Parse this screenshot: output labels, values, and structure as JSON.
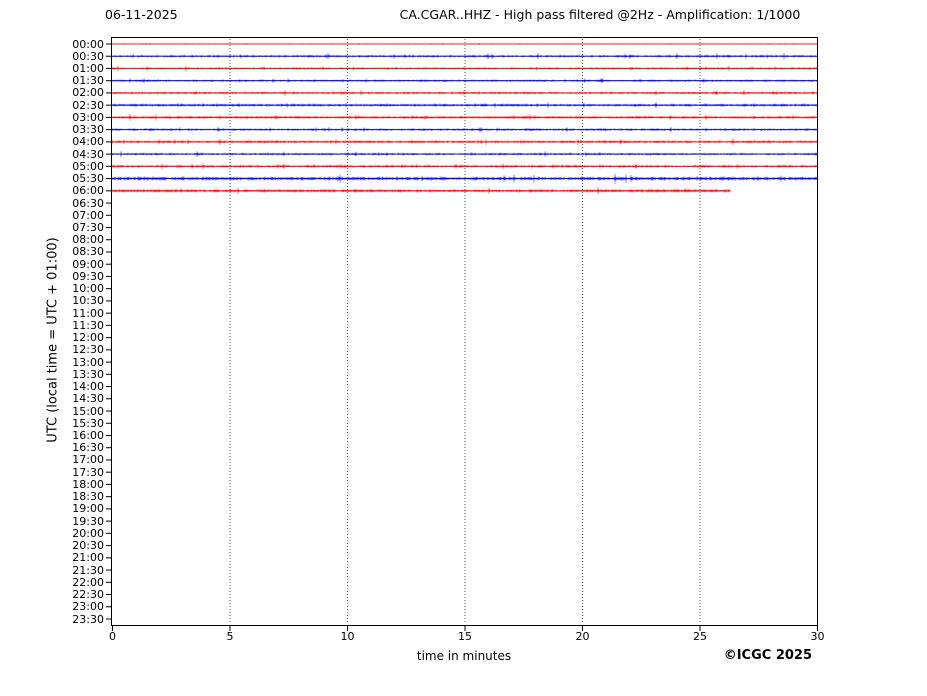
{
  "header": {
    "date": "06-11-2025",
    "title": "CA.CGAR..HHZ - High pass filtered @2Hz - Amplification: 1/1000"
  },
  "y_axis": {
    "label": "UTC (local time = UTC + 01:00)",
    "tick_labels": [
      "00:00",
      "00:30",
      "01:00",
      "01:30",
      "02:00",
      "02:30",
      "03:00",
      "03:30",
      "04:00",
      "04:30",
      "05:00",
      "05:30",
      "06:00",
      "06:30",
      "07:00",
      "07:30",
      "08:00",
      "08:30",
      "09:00",
      "09:30",
      "10:00",
      "10:30",
      "11:00",
      "11:30",
      "12:00",
      "12:30",
      "13:00",
      "13:30",
      "14:00",
      "14:30",
      "15:00",
      "15:30",
      "16:00",
      "16:30",
      "17:00",
      "17:30",
      "18:00",
      "18:30",
      "19:00",
      "19:30",
      "20:00",
      "20:30",
      "21:00",
      "21:30",
      "22:00",
      "22:30",
      "23:00",
      "23:30"
    ]
  },
  "x_axis": {
    "label": "time in minutes",
    "tick_labels": [
      "0",
      "5",
      "10",
      "15",
      "20",
      "25",
      "30"
    ],
    "tick_minutes": [
      0,
      5,
      10,
      15,
      20,
      25,
      30
    ]
  },
  "footer": {
    "copyright": "©ICGC 2025"
  },
  "chart_data": {
    "type": "line",
    "subtype": "helicorder-daily-seismogram",
    "station": "CA.CGAR..HHZ",
    "date": "06-11-2025",
    "filter": "High pass filtered @2Hz",
    "amplification": "1/1000",
    "title": "CA.CGAR..HHZ - High pass filtered @2Hz - Amplification: 1/1000",
    "xlabel": "time in minutes",
    "ylabel": "UTC (local time = UTC + 01:00)",
    "xlim": [
      0,
      30
    ],
    "minutes_per_row": 30,
    "rows_per_day": 48,
    "grid": "vertical-dotted",
    "gridline_minutes": [
      5,
      10,
      15,
      20,
      25
    ],
    "gridline_color": "#555555",
    "trace_colors": {
      "hour_rows": "#ff0000",
      "half_hour_rows": "#0000ff"
    },
    "rows": [
      {
        "time": "00:00",
        "color": "#ff0000",
        "start_min": 0,
        "end_min": 30,
        "amplitude": 0.45
      },
      {
        "time": "00:30",
        "color": "#0000ff",
        "start_min": 0,
        "end_min": 30,
        "amplitude": 1.2
      },
      {
        "time": "01:00",
        "color": "#ff0000",
        "start_min": 0,
        "end_min": 30,
        "amplitude": 1.15
      },
      {
        "time": "01:30",
        "color": "#0000ff",
        "start_min": 0,
        "end_min": 30,
        "amplitude": 1.1
      },
      {
        "time": "02:00",
        "color": "#ff0000",
        "start_min": 0,
        "end_min": 30,
        "amplitude": 1.2
      },
      {
        "time": "02:30",
        "color": "#0000ff",
        "start_min": 0,
        "end_min": 30,
        "amplitude": 1.35
      },
      {
        "time": "03:00",
        "color": "#ff0000",
        "start_min": 0,
        "end_min": 30,
        "amplitude": 1.35
      },
      {
        "time": "03:30",
        "color": "#0000ff",
        "start_min": 0,
        "end_min": 30,
        "amplitude": 1.2
      },
      {
        "time": "04:00",
        "color": "#ff0000",
        "start_min": 0,
        "end_min": 30,
        "amplitude": 1.35
      },
      {
        "time": "04:30",
        "color": "#0000ff",
        "start_min": 0,
        "end_min": 30,
        "amplitude": 1.2
      },
      {
        "time": "05:00",
        "color": "#ff0000",
        "start_min": 0,
        "end_min": 30,
        "amplitude": 1.35
      },
      {
        "time": "05:30",
        "color": "#0000ff",
        "start_min": 0,
        "end_min": 30,
        "amplitude": 1.8
      },
      {
        "time": "06:00",
        "color": "#ff0000",
        "start_min": 0,
        "end_min": 26.3,
        "amplitude": 1.6
      }
    ]
  }
}
